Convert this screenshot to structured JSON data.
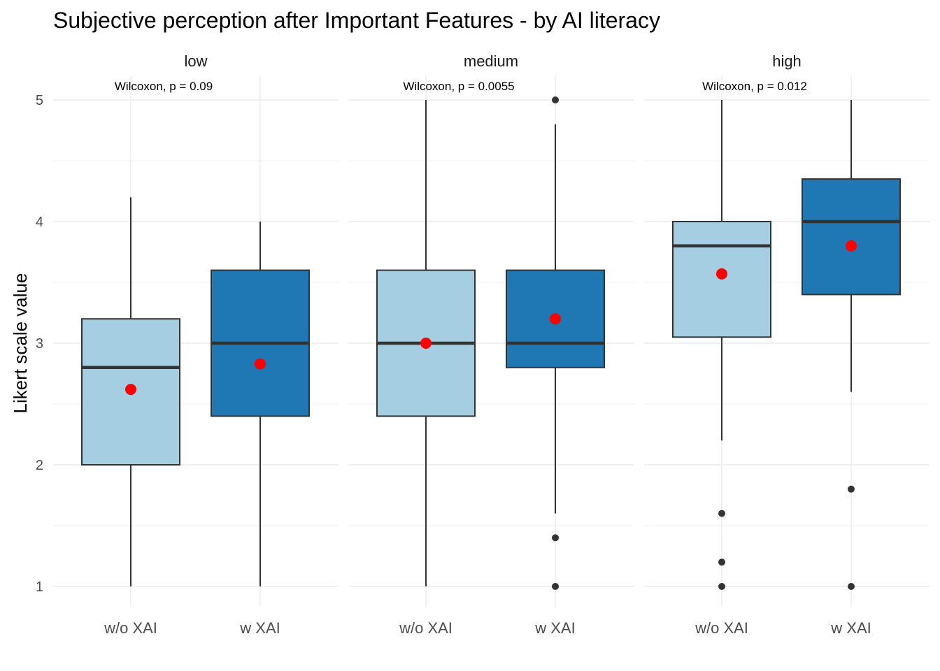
{
  "chart_data": {
    "type": "boxplot",
    "title": "Subjective perception after Important Features - by AI literacy",
    "ylabel": "Likert scale value",
    "xlabel": "",
    "ylim": [
      0.84,
      5.2
    ],
    "yticks": [
      1,
      2,
      3,
      4,
      5
    ],
    "grid": true,
    "categories": [
      "w/o XAI",
      "w XAI"
    ],
    "colors": {
      "w/o XAI": "#a6cee3",
      "w XAI": "#1f78b4",
      "mean_marker": "#ff0000",
      "outline": "#333333"
    },
    "panels": [
      {
        "name": "low",
        "test_label": "Wilcoxon, p = 0.09",
        "boxes": [
          {
            "group": "w/o XAI",
            "whisker_low": 1.0,
            "q1": 2.0,
            "median": 2.8,
            "q3": 3.2,
            "whisker_high": 4.2,
            "mean": 2.62,
            "outliers": []
          },
          {
            "group": "w XAI",
            "whisker_low": 1.0,
            "q1": 2.4,
            "median": 3.0,
            "q3": 3.6,
            "whisker_high": 4.0,
            "mean": 2.83,
            "outliers": []
          }
        ]
      },
      {
        "name": "medium",
        "test_label": "Wilcoxon, p = 0.0055",
        "boxes": [
          {
            "group": "w/o XAI",
            "whisker_low": 1.0,
            "q1": 2.4,
            "median": 3.0,
            "q3": 3.6,
            "whisker_high": 5.0,
            "mean": 3.0,
            "outliers": []
          },
          {
            "group": "w XAI",
            "whisker_low": 1.6,
            "q1": 2.8,
            "median": 3.0,
            "q3": 3.6,
            "whisker_high": 4.8,
            "mean": 3.2,
            "outliers": [
              1.0,
              1.4,
              5.0
            ]
          }
        ]
      },
      {
        "name": "high",
        "test_label": "Wilcoxon, p = 0.012",
        "boxes": [
          {
            "group": "w/o XAI",
            "whisker_low": 2.2,
            "q1": 3.05,
            "median": 3.8,
            "q3": 4.0,
            "whisker_high": 5.0,
            "mean": 3.57,
            "outliers": [
              1.0,
              1.2,
              1.6
            ]
          },
          {
            "group": "w XAI",
            "whisker_low": 2.6,
            "q1": 3.4,
            "median": 4.0,
            "q3": 4.35,
            "whisker_high": 5.0,
            "mean": 3.8,
            "outliers": [
              1.0,
              1.8
            ]
          }
        ]
      }
    ]
  }
}
